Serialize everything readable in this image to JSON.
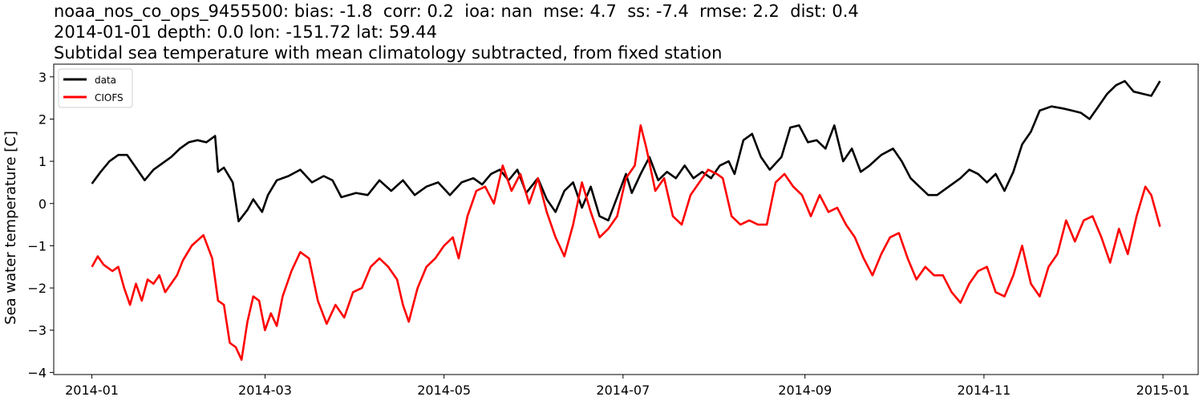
{
  "titles": {
    "line1": "noaa_nos_co_ops_9455500: bias: -1.8  corr: 0.2  ioa: nan  mse: 4.7  ss: -7.4  rmse: 2.2  dist: 0.4",
    "line2": "2014-01-01 depth: 0.0 lon: -151.72 lat: 59.44",
    "line3": "Subtidal sea temperature with mean climatology subtracted, from fixed station"
  },
  "chart_data": {
    "type": "line",
    "ylabel": "Sea water temperature [C]",
    "xlabel": "",
    "ylim": [
      -4.05,
      3.3
    ],
    "xlim": [
      "2013-12-19",
      "2015-01-13"
    ],
    "grid": false,
    "legend_position": "top-left",
    "x_ticks": [
      "2014-01",
      "2014-03",
      "2014-05",
      "2014-07",
      "2014-09",
      "2014-11",
      "2015-01"
    ],
    "y_ticks": [
      -4,
      -3,
      -2,
      -1,
      0,
      1,
      2,
      3
    ],
    "colors": {
      "data": "#000000",
      "CIOFS": "#ff0000"
    },
    "series": [
      {
        "name": "data",
        "color": "#000000",
        "points": [
          [
            "2014-01-01",
            0.47
          ],
          [
            "2014-01-04",
            0.75
          ],
          [
            "2014-01-07",
            1.0
          ],
          [
            "2014-01-10",
            1.15
          ],
          [
            "2014-01-13",
            1.15
          ],
          [
            "2014-01-16",
            0.85
          ],
          [
            "2014-01-19",
            0.55
          ],
          [
            "2014-01-22",
            0.8
          ],
          [
            "2014-01-25",
            0.95
          ],
          [
            "2014-01-28",
            1.1
          ],
          [
            "2014-01-31",
            1.3
          ],
          [
            "2014-02-03",
            1.45
          ],
          [
            "2014-02-06",
            1.5
          ],
          [
            "2014-02-09",
            1.45
          ],
          [
            "2014-02-12",
            1.6
          ],
          [
            "2014-02-13",
            0.75
          ],
          [
            "2014-02-15",
            0.85
          ],
          [
            "2014-02-18",
            0.5
          ],
          [
            "2014-02-20",
            -0.42
          ],
          [
            "2014-02-23",
            -0.15
          ],
          [
            "2014-02-25",
            0.1
          ],
          [
            "2014-02-28",
            -0.2
          ],
          [
            "2014-03-02",
            0.2
          ],
          [
            "2014-03-05",
            0.55
          ],
          [
            "2014-03-09",
            0.65
          ],
          [
            "2014-03-13",
            0.8
          ],
          [
            "2014-03-17",
            0.5
          ],
          [
            "2014-03-21",
            0.65
          ],
          [
            "2014-03-24",
            0.55
          ],
          [
            "2014-03-27",
            0.15
          ],
          [
            "2014-04-01",
            0.25
          ],
          [
            "2014-04-05",
            0.2
          ],
          [
            "2014-04-09",
            0.55
          ],
          [
            "2014-04-13",
            0.3
          ],
          [
            "2014-04-17",
            0.55
          ],
          [
            "2014-04-21",
            0.2
          ],
          [
            "2014-04-25",
            0.4
          ],
          [
            "2014-04-29",
            0.5
          ],
          [
            "2014-05-03",
            0.2
          ],
          [
            "2014-05-07",
            0.5
          ],
          [
            "2014-05-11",
            0.6
          ],
          [
            "2014-05-14",
            0.45
          ],
          [
            "2014-05-17",
            0.7
          ],
          [
            "2014-05-20",
            0.8
          ],
          [
            "2014-05-23",
            0.55
          ],
          [
            "2014-05-26",
            0.8
          ],
          [
            "2014-05-29",
            0.25
          ],
          [
            "2014-06-02",
            0.6
          ],
          [
            "2014-06-05",
            0.1
          ],
          [
            "2014-06-08",
            -0.2
          ],
          [
            "2014-06-11",
            0.3
          ],
          [
            "2014-06-14",
            0.5
          ],
          [
            "2014-06-17",
            -0.1
          ],
          [
            "2014-06-20",
            0.4
          ],
          [
            "2014-06-23",
            -0.3
          ],
          [
            "2014-06-26",
            -0.4
          ],
          [
            "2014-06-29",
            0.15
          ],
          [
            "2014-07-02",
            0.7
          ],
          [
            "2014-07-04",
            0.25
          ],
          [
            "2014-07-07",
            0.7
          ],
          [
            "2014-07-10",
            1.1
          ],
          [
            "2014-07-13",
            0.55
          ],
          [
            "2014-07-16",
            0.75
          ],
          [
            "2014-07-19",
            0.6
          ],
          [
            "2014-07-22",
            0.9
          ],
          [
            "2014-07-25",
            0.6
          ],
          [
            "2014-07-28",
            0.75
          ],
          [
            "2014-07-31",
            0.6
          ],
          [
            "2014-08-03",
            0.9
          ],
          [
            "2014-08-06",
            1.0
          ],
          [
            "2014-08-08",
            0.7
          ],
          [
            "2014-08-11",
            1.5
          ],
          [
            "2014-08-14",
            1.65
          ],
          [
            "2014-08-17",
            1.1
          ],
          [
            "2014-08-20",
            0.8
          ],
          [
            "2014-08-24",
            1.1
          ],
          [
            "2014-08-27",
            1.8
          ],
          [
            "2014-08-30",
            1.85
          ],
          [
            "2014-09-02",
            1.45
          ],
          [
            "2014-09-05",
            1.5
          ],
          [
            "2014-09-08",
            1.3
          ],
          [
            "2014-09-11",
            1.85
          ],
          [
            "2014-09-14",
            1.0
          ],
          [
            "2014-09-17",
            1.3
          ],
          [
            "2014-09-20",
            0.75
          ],
          [
            "2014-09-23",
            0.9
          ],
          [
            "2014-09-27",
            1.15
          ],
          [
            "2014-10-01",
            1.3
          ],
          [
            "2014-10-04",
            1.0
          ],
          [
            "2014-10-07",
            0.6
          ],
          [
            "2014-10-10",
            0.4
          ],
          [
            "2014-10-13",
            0.2
          ],
          [
            "2014-10-16",
            0.2
          ],
          [
            "2014-10-20",
            0.4
          ],
          [
            "2014-10-24",
            0.6
          ],
          [
            "2014-10-27",
            0.8
          ],
          [
            "2014-10-30",
            0.7
          ],
          [
            "2014-11-02",
            0.5
          ],
          [
            "2014-11-05",
            0.7
          ],
          [
            "2014-11-08",
            0.3
          ],
          [
            "2014-11-11",
            0.75
          ],
          [
            "2014-11-14",
            1.4
          ],
          [
            "2014-11-17",
            1.7
          ],
          [
            "2014-11-20",
            2.2
          ],
          [
            "2014-11-24",
            2.3
          ],
          [
            "2014-11-28",
            2.25
          ],
          [
            "2014-12-01",
            2.2
          ],
          [
            "2014-12-04",
            2.15
          ],
          [
            "2014-12-07",
            2.0
          ],
          [
            "2014-12-10",
            2.3
          ],
          [
            "2014-12-13",
            2.6
          ],
          [
            "2014-12-16",
            2.8
          ],
          [
            "2014-12-19",
            2.9
          ],
          [
            "2014-12-22",
            2.65
          ],
          [
            "2014-12-25",
            2.6
          ],
          [
            "2014-12-28",
            2.55
          ],
          [
            "2014-12-31",
            2.9
          ]
        ]
      },
      {
        "name": "CIOFS",
        "color": "#ff0000",
        "points": [
          [
            "2014-01-01",
            -1.5
          ],
          [
            "2014-01-03",
            -1.25
          ],
          [
            "2014-01-05",
            -1.45
          ],
          [
            "2014-01-08",
            -1.6
          ],
          [
            "2014-01-10",
            -1.5
          ],
          [
            "2014-01-12",
            -2.0
          ],
          [
            "2014-01-14",
            -2.4
          ],
          [
            "2014-01-16",
            -1.9
          ],
          [
            "2014-01-18",
            -2.3
          ],
          [
            "2014-01-20",
            -1.8
          ],
          [
            "2014-01-22",
            -1.9
          ],
          [
            "2014-01-24",
            -1.7
          ],
          [
            "2014-01-26",
            -2.1
          ],
          [
            "2014-01-28",
            -1.9
          ],
          [
            "2014-01-30",
            -1.7
          ],
          [
            "2014-02-01",
            -1.35
          ],
          [
            "2014-02-04",
            -1.0
          ],
          [
            "2014-02-08",
            -0.75
          ],
          [
            "2014-02-11",
            -1.3
          ],
          [
            "2014-02-13",
            -2.3
          ],
          [
            "2014-02-15",
            -2.4
          ],
          [
            "2014-02-17",
            -3.3
          ],
          [
            "2014-02-19",
            -3.4
          ],
          [
            "2014-02-21",
            -3.7
          ],
          [
            "2014-02-23",
            -2.8
          ],
          [
            "2014-02-25",
            -2.2
          ],
          [
            "2014-02-27",
            -2.3
          ],
          [
            "2014-03-01",
            -3.0
          ],
          [
            "2014-03-03",
            -2.6
          ],
          [
            "2014-03-05",
            -2.9
          ],
          [
            "2014-03-07",
            -2.2
          ],
          [
            "2014-03-10",
            -1.6
          ],
          [
            "2014-03-13",
            -1.15
          ],
          [
            "2014-03-16",
            -1.3
          ],
          [
            "2014-03-19",
            -2.3
          ],
          [
            "2014-03-22",
            -2.85
          ],
          [
            "2014-03-25",
            -2.4
          ],
          [
            "2014-03-28",
            -2.7
          ],
          [
            "2014-03-31",
            -2.1
          ],
          [
            "2014-04-03",
            -2.0
          ],
          [
            "2014-04-06",
            -1.5
          ],
          [
            "2014-04-09",
            -1.3
          ],
          [
            "2014-04-12",
            -1.5
          ],
          [
            "2014-04-15",
            -1.8
          ],
          [
            "2014-04-17",
            -2.4
          ],
          [
            "2014-04-19",
            -2.8
          ],
          [
            "2014-04-22",
            -2.0
          ],
          [
            "2014-04-25",
            -1.5
          ],
          [
            "2014-04-28",
            -1.3
          ],
          [
            "2014-05-01",
            -1.0
          ],
          [
            "2014-05-04",
            -0.8
          ],
          [
            "2014-05-06",
            -1.3
          ],
          [
            "2014-05-09",
            -0.3
          ],
          [
            "2014-05-12",
            0.3
          ],
          [
            "2014-05-15",
            0.4
          ],
          [
            "2014-05-18",
            0.0
          ],
          [
            "2014-05-21",
            0.9
          ],
          [
            "2014-05-24",
            0.3
          ],
          [
            "2014-05-27",
            0.7
          ],
          [
            "2014-05-30",
            0.0
          ],
          [
            "2014-06-02",
            0.6
          ],
          [
            "2014-06-05",
            -0.2
          ],
          [
            "2014-06-08",
            -0.8
          ],
          [
            "2014-06-11",
            -1.25
          ],
          [
            "2014-06-14",
            -0.5
          ],
          [
            "2014-06-17",
            0.5
          ],
          [
            "2014-06-20",
            -0.2
          ],
          [
            "2014-06-23",
            -0.8
          ],
          [
            "2014-06-26",
            -0.6
          ],
          [
            "2014-06-29",
            -0.3
          ],
          [
            "2014-07-02",
            0.6
          ],
          [
            "2014-07-05",
            0.9
          ],
          [
            "2014-07-07",
            1.85
          ],
          [
            "2014-07-09",
            1.3
          ],
          [
            "2014-07-12",
            0.3
          ],
          [
            "2014-07-15",
            0.6
          ],
          [
            "2014-07-18",
            -0.3
          ],
          [
            "2014-07-21",
            -0.5
          ],
          [
            "2014-07-24",
            0.2
          ],
          [
            "2014-07-27",
            0.5
          ],
          [
            "2014-07-30",
            0.8
          ],
          [
            "2014-08-02",
            0.7
          ],
          [
            "2014-08-04",
            0.6
          ],
          [
            "2014-08-07",
            -0.3
          ],
          [
            "2014-08-10",
            -0.5
          ],
          [
            "2014-08-13",
            -0.4
          ],
          [
            "2014-08-16",
            -0.5
          ],
          [
            "2014-08-19",
            -0.5
          ],
          [
            "2014-08-22",
            0.5
          ],
          [
            "2014-08-25",
            0.7
          ],
          [
            "2014-08-28",
            0.4
          ],
          [
            "2014-08-31",
            0.2
          ],
          [
            "2014-09-03",
            -0.3
          ],
          [
            "2014-09-06",
            0.2
          ],
          [
            "2014-09-09",
            -0.2
          ],
          [
            "2014-09-12",
            -0.1
          ],
          [
            "2014-09-15",
            -0.5
          ],
          [
            "2014-09-18",
            -0.8
          ],
          [
            "2014-09-21",
            -1.3
          ],
          [
            "2014-09-24",
            -1.7
          ],
          [
            "2014-09-27",
            -1.2
          ],
          [
            "2014-09-30",
            -0.8
          ],
          [
            "2014-10-03",
            -0.7
          ],
          [
            "2014-10-06",
            -1.3
          ],
          [
            "2014-10-09",
            -1.8
          ],
          [
            "2014-10-12",
            -1.5
          ],
          [
            "2014-10-15",
            -1.7
          ],
          [
            "2014-10-18",
            -1.7
          ],
          [
            "2014-10-21",
            -2.1
          ],
          [
            "2014-10-24",
            -2.35
          ],
          [
            "2014-10-27",
            -1.9
          ],
          [
            "2014-10-30",
            -1.6
          ],
          [
            "2014-11-02",
            -1.5
          ],
          [
            "2014-11-05",
            -2.1
          ],
          [
            "2014-11-08",
            -2.2
          ],
          [
            "2014-11-11",
            -1.7
          ],
          [
            "2014-11-14",
            -1.0
          ],
          [
            "2014-11-17",
            -1.9
          ],
          [
            "2014-11-20",
            -2.2
          ],
          [
            "2014-11-23",
            -1.5
          ],
          [
            "2014-11-26",
            -1.2
          ],
          [
            "2014-11-29",
            -0.4
          ],
          [
            "2014-12-02",
            -0.9
          ],
          [
            "2014-12-05",
            -0.4
          ],
          [
            "2014-12-08",
            -0.3
          ],
          [
            "2014-12-11",
            -0.8
          ],
          [
            "2014-12-14",
            -1.4
          ],
          [
            "2014-12-17",
            -0.6
          ],
          [
            "2014-12-20",
            -1.2
          ],
          [
            "2014-12-23",
            -0.3
          ],
          [
            "2014-12-26",
            0.4
          ],
          [
            "2014-12-28",
            0.2
          ],
          [
            "2014-12-31",
            -0.55
          ]
        ]
      }
    ]
  }
}
